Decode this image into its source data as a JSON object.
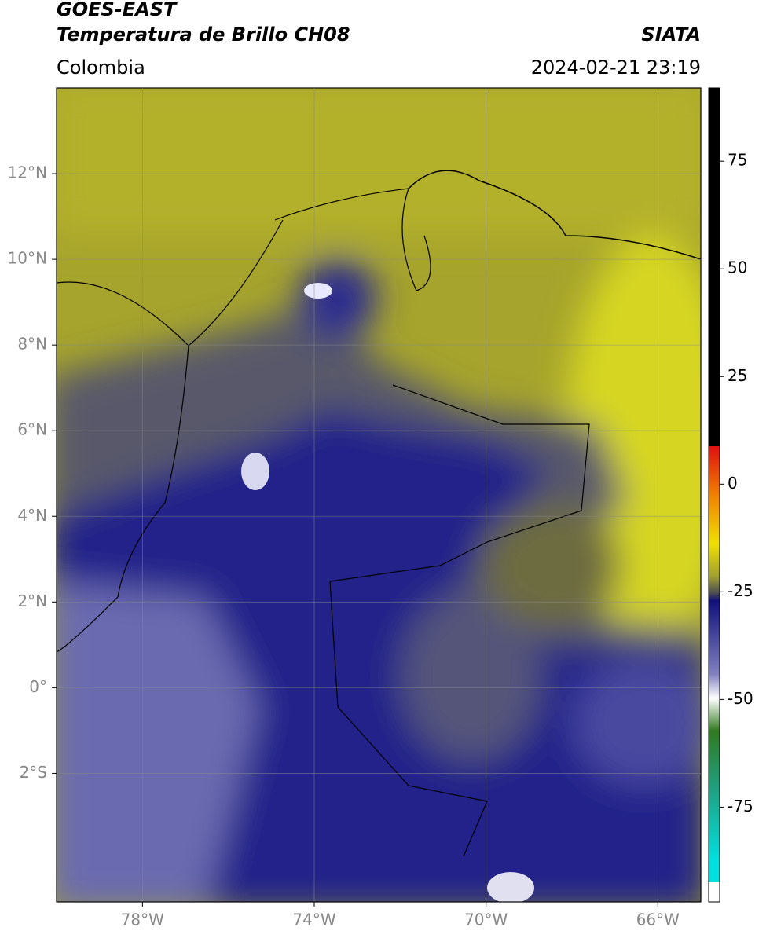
{
  "header": {
    "title": "GOES-EAST",
    "subtitle": "Temperatura de Brillo CH08",
    "region": "Colombia",
    "source": "SIATA",
    "datetime": "2024-02-21 23:19"
  },
  "map": {
    "lon_lim": [
      -80,
      -65
    ],
    "lat_lim": [
      -5,
      14
    ],
    "lon_ticks": [
      {
        "value": -78,
        "label": "78°W"
      },
      {
        "value": -74,
        "label": "74°W"
      },
      {
        "value": -70,
        "label": "70°W"
      },
      {
        "value": -66,
        "label": "66°W"
      }
    ],
    "lat_ticks": [
      {
        "value": 12,
        "label": "12°N"
      },
      {
        "value": 10,
        "label": "10°N"
      },
      {
        "value": 8,
        "label": "8°N"
      },
      {
        "value": 6,
        "label": "6°N"
      },
      {
        "value": 4,
        "label": "4°N"
      },
      {
        "value": 2,
        "label": "2°N"
      },
      {
        "value": 0,
        "label": "0°"
      },
      {
        "value": -2,
        "label": "2°S"
      }
    ],
    "grid": true
  },
  "colorbar": {
    "lim": [
      -97,
      92
    ],
    "ticks": [
      75,
      50,
      25,
      0,
      -25,
      -50,
      -75
    ]
  }
}
